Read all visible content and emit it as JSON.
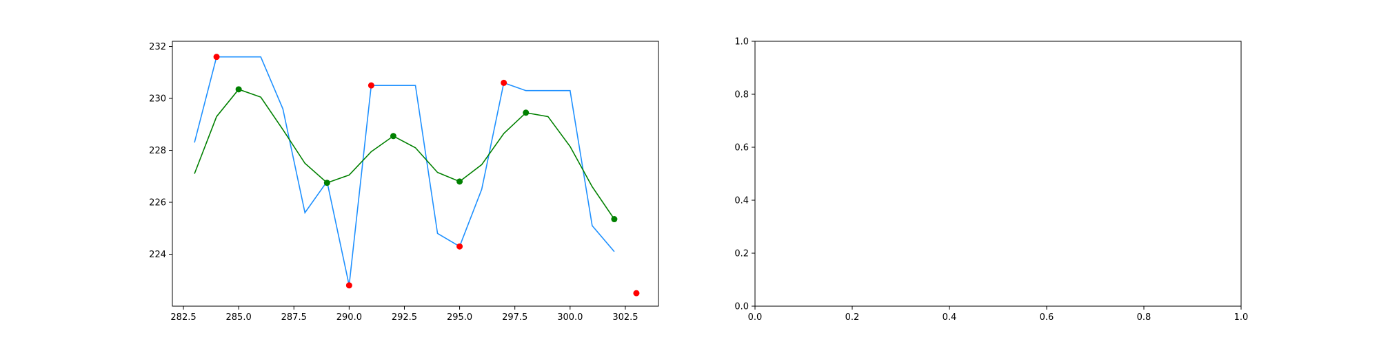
{
  "chart_data": [
    {
      "type": "line",
      "title": "",
      "xlabel": "",
      "ylabel": "",
      "xlim": [
        282.0,
        304.0
      ],
      "ylim": [
        222.0,
        232.2
      ],
      "xticks": [
        282.5,
        285.0,
        287.5,
        290.0,
        292.5,
        295.0,
        297.5,
        300.0,
        302.5
      ],
      "xtick_labels": [
        "282.5",
        "285.0",
        "287.5",
        "290.0",
        "292.5",
        "295.0",
        "297.5",
        "300.0",
        "302.5"
      ],
      "yticks": [
        224,
        226,
        228,
        230,
        232
      ],
      "ytick_labels": [
        "224",
        "226",
        "228",
        "230",
        "232"
      ],
      "grid": false,
      "series": [
        {
          "kind": "line",
          "color": "#1e90ff",
          "x": [
            283,
            284,
            285,
            286,
            287,
            288,
            289,
            290,
            291,
            292,
            293,
            294,
            295,
            296,
            297,
            298,
            299,
            300,
            301,
            302
          ],
          "y": [
            228.3,
            231.6,
            231.6,
            231.6,
            229.6,
            225.6,
            226.8,
            222.8,
            230.5,
            230.5,
            230.5,
            224.8,
            224.3,
            226.5,
            230.6,
            230.3,
            230.3,
            230.3,
            225.1,
            224.1
          ]
        },
        {
          "kind": "line",
          "color": "#008000",
          "x": [
            283,
            284,
            285,
            286,
            287,
            288,
            289,
            290,
            291,
            292,
            293,
            294,
            295,
            296,
            297,
            298,
            299,
            300,
            301,
            302
          ],
          "y": [
            227.1,
            229.3,
            230.35,
            230.05,
            228.8,
            227.5,
            226.75,
            227.05,
            227.95,
            228.55,
            228.1,
            227.15,
            226.8,
            227.45,
            228.65,
            229.45,
            229.3,
            228.15,
            226.6,
            225.35
          ]
        },
        {
          "kind": "scatter",
          "color": "#ff0000",
          "x": [
            284,
            290,
            291,
            295,
            297,
            303
          ],
          "y": [
            231.6,
            222.8,
            230.5,
            224.3,
            230.6,
            222.5
          ]
        },
        {
          "kind": "scatter",
          "color": "#008000",
          "x": [
            285,
            289,
            292,
            295,
            298,
            302
          ],
          "y": [
            230.35,
            226.75,
            228.55,
            226.8,
            229.45,
            225.35
          ]
        }
      ]
    },
    {
      "type": "line",
      "title": "",
      "xlabel": "",
      "ylabel": "",
      "xlim": [
        0.0,
        1.0
      ],
      "ylim": [
        0.0,
        1.0
      ],
      "xticks": [
        0.0,
        0.2,
        0.4,
        0.6,
        0.8,
        1.0
      ],
      "xtick_labels": [
        "0.0",
        "0.2",
        "0.4",
        "0.6",
        "0.8",
        "1.0"
      ],
      "yticks": [
        0.0,
        0.2,
        0.4,
        0.6,
        0.8,
        1.0
      ],
      "ytick_labels": [
        "0.0",
        "0.2",
        "0.4",
        "0.6",
        "0.8",
        "1.0"
      ],
      "grid": false,
      "series": []
    }
  ]
}
